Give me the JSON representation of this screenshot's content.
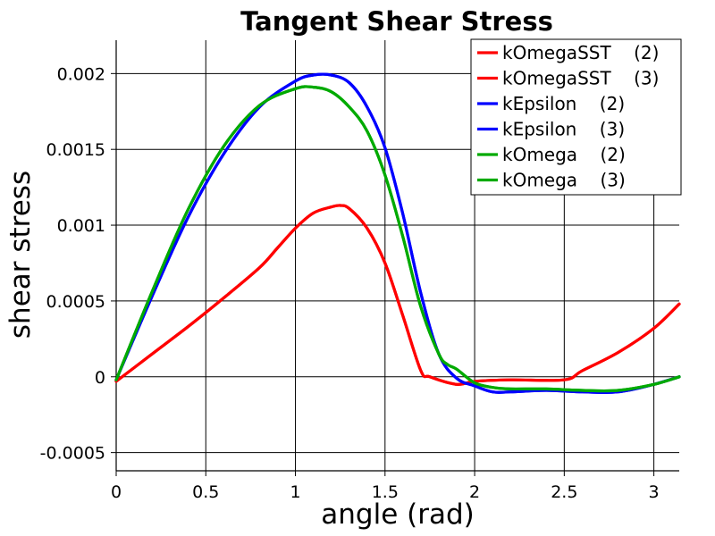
{
  "chart_data": {
    "type": "line",
    "title": "Tangent Shear Stress",
    "xlabel": "angle (rad)",
    "ylabel": "shear stress",
    "xlim": [
      0,
      3.14159
    ],
    "ylim": [
      -0.00062,
      0.00222
    ],
    "grid": true,
    "legend_position": "top-right",
    "x_ticks": [
      0,
      0.5,
      1,
      1.5,
      2,
      2.5,
      3
    ],
    "x_tick_labels": [
      "0",
      "0.5",
      "1",
      "1.5",
      "2",
      "2.5",
      "3"
    ],
    "y_ticks": [
      -0.0005,
      0,
      0.0005,
      0.001,
      0.0015,
      0.002
    ],
    "y_tick_labels": [
      "-0.0005",
      "0",
      "0.0005",
      "0.001",
      "0.0015",
      "0.002"
    ],
    "series": [
      {
        "name": "kOmegaSST    (2)",
        "color": "#ff0000",
        "x": [
          0,
          0.2,
          0.4,
          0.6,
          0.8,
          0.9,
          1.0,
          1.1,
          1.2,
          1.25,
          1.3,
          1.4,
          1.5,
          1.6,
          1.7,
          1.75,
          1.9,
          2.0,
          2.2,
          2.5,
          2.6,
          2.8,
          3.0,
          3.14159
        ],
        "y": [
          -3e-05,
          0.00015,
          0.00033,
          0.00052,
          0.00072,
          0.00085,
          0.00098,
          0.00108,
          0.00112,
          0.00113,
          0.00111,
          0.00098,
          0.00075,
          0.0004,
          4e-05,
          0.0,
          -5e-05,
          -3e-05,
          -2e-05,
          -2e-05,
          4e-05,
          0.00016,
          0.00032,
          0.00048
        ]
      },
      {
        "name": "kOmegaSST    (3)",
        "color": "#ff0000",
        "x": [
          0,
          0.2,
          0.4,
          0.6,
          0.8,
          0.9,
          1.0,
          1.1,
          1.2,
          1.25,
          1.3,
          1.4,
          1.5,
          1.6,
          1.7,
          1.75,
          1.9,
          2.0,
          2.2,
          2.5,
          2.6,
          2.8,
          3.0,
          3.14159
        ],
        "y": [
          -3e-05,
          0.00015,
          0.00033,
          0.00052,
          0.00072,
          0.00085,
          0.00098,
          0.00108,
          0.00112,
          0.00113,
          0.00111,
          0.00098,
          0.00075,
          0.0004,
          4e-05,
          0.0,
          -5e-05,
          -3e-05,
          -2e-05,
          -2e-05,
          4e-05,
          0.00016,
          0.00032,
          0.00048
        ]
      },
      {
        "name": "kEpsilon    (2)",
        "color": "#0000ff",
        "x": [
          0,
          0.2,
          0.4,
          0.6,
          0.8,
          1.0,
          1.1,
          1.2,
          1.3,
          1.4,
          1.5,
          1.6,
          1.7,
          1.8,
          1.9,
          2.0,
          2.1,
          2.2,
          2.4,
          2.6,
          2.8,
          3.0,
          3.14159
        ],
        "y": [
          -2e-05,
          0.00053,
          0.00105,
          0.00147,
          0.00178,
          0.00195,
          0.00199,
          0.00199,
          0.00194,
          0.00178,
          0.00151,
          0.00107,
          0.00055,
          0.00015,
          -1e-05,
          -6e-05,
          -0.0001,
          -0.0001,
          -9e-05,
          -0.0001,
          -0.0001,
          -5e-05,
          0.0
        ]
      },
      {
        "name": "kEpsilon    (3)",
        "color": "#0000ff",
        "x": [
          0,
          0.2,
          0.4,
          0.6,
          0.8,
          1.0,
          1.1,
          1.2,
          1.3,
          1.4,
          1.5,
          1.6,
          1.7,
          1.8,
          1.9,
          2.0,
          2.1,
          2.2,
          2.4,
          2.6,
          2.8,
          3.0,
          3.14159
        ],
        "y": [
          -2e-05,
          0.00053,
          0.00105,
          0.00147,
          0.00178,
          0.00195,
          0.00199,
          0.00199,
          0.00194,
          0.00178,
          0.00151,
          0.00107,
          0.00055,
          0.00015,
          -1e-05,
          -6e-05,
          -0.0001,
          -0.0001,
          -9e-05,
          -0.0001,
          -0.0001,
          -5e-05,
          0.0
        ]
      },
      {
        "name": "kOmega    (2)",
        "color": "#00aa00",
        "x": [
          0,
          0.2,
          0.4,
          0.6,
          0.8,
          1.0,
          1.1,
          1.2,
          1.3,
          1.4,
          1.5,
          1.6,
          1.7,
          1.8,
          1.85,
          1.9,
          2.0,
          2.1,
          2.2,
          2.4,
          2.6,
          2.8,
          3.0,
          3.14159
        ],
        "y": [
          -2e-05,
          0.00056,
          0.0011,
          0.00152,
          0.00179,
          0.0019,
          0.00191,
          0.00188,
          0.00178,
          0.00162,
          0.00133,
          0.00092,
          0.00046,
          0.00015,
          8e-05,
          5e-05,
          -4e-05,
          -7e-05,
          -8e-05,
          -8e-05,
          -9e-05,
          -9e-05,
          -5e-05,
          0.0
        ]
      },
      {
        "name": "kOmega    (3)",
        "color": "#00aa00",
        "x": [
          0,
          0.2,
          0.4,
          0.6,
          0.8,
          1.0,
          1.1,
          1.2,
          1.3,
          1.4,
          1.5,
          1.6,
          1.7,
          1.8,
          1.85,
          1.9,
          2.0,
          2.1,
          2.2,
          2.4,
          2.6,
          2.8,
          3.0,
          3.14159
        ],
        "y": [
          -2e-05,
          0.00056,
          0.0011,
          0.00152,
          0.00179,
          0.0019,
          0.00191,
          0.00188,
          0.00178,
          0.00162,
          0.00133,
          0.00092,
          0.00046,
          0.00015,
          8e-05,
          5e-05,
          -4e-05,
          -7e-05,
          -8e-05,
          -8e-05,
          -9e-05,
          -9e-05,
          -5e-05,
          0.0
        ]
      }
    ]
  }
}
